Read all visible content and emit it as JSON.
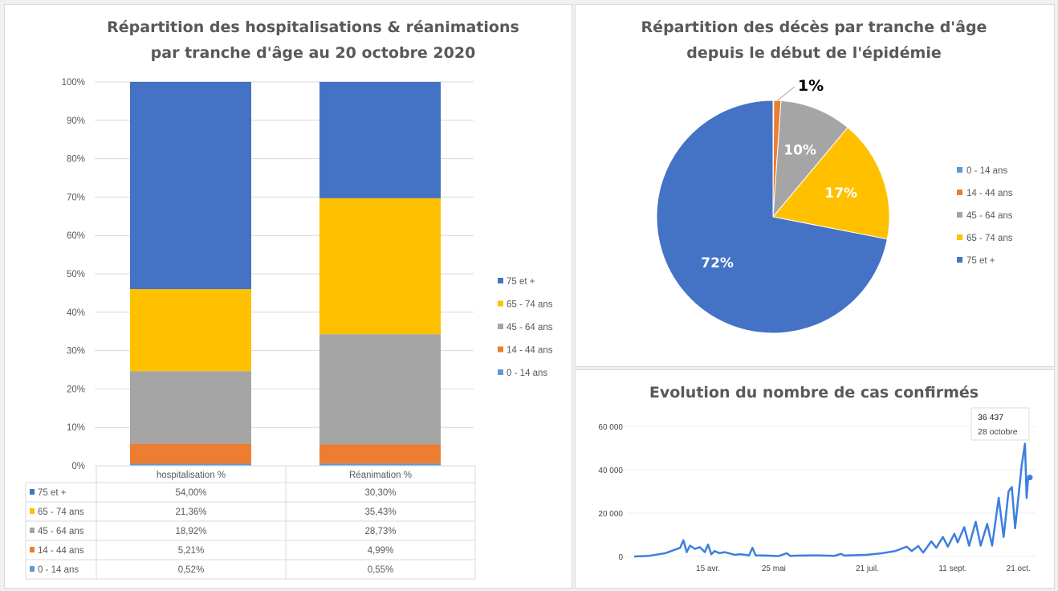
{
  "chart_data": [
    {
      "type": "bar",
      "stacked": true,
      "title": [
        "Répartition des hospitalisations & réanimations",
        "par tranche d'âge au 20 octobre 2020"
      ],
      "categories": [
        "hospitalisation %",
        "Réanimation %"
      ],
      "yticks": [
        "0%",
        "10%",
        "20%",
        "30%",
        "40%",
        "50%",
        "60%",
        "70%",
        "80%",
        "90%",
        "100%"
      ],
      "ylim": [
        0,
        100
      ],
      "series": [
        {
          "name": "0 - 14 ans",
          "values": [
            0.52,
            0.55
          ],
          "labels": [
            "0,52%",
            "0,55%"
          ],
          "color": "#5b9bd5"
        },
        {
          "name": "14 - 44 ans",
          "values": [
            5.21,
            4.99
          ],
          "labels": [
            "5,21%",
            "4,99%"
          ],
          "color": "#ed7d31"
        },
        {
          "name": "45 - 64 ans",
          "values": [
            18.92,
            28.73
          ],
          "labels": [
            "18,92%",
            "28,73%"
          ],
          "color": "#a5a5a5"
        },
        {
          "name": "65 - 74 ans",
          "values": [
            21.36,
            35.43
          ],
          "labels": [
            "21,36%",
            "35,43%"
          ],
          "color": "#ffc000"
        },
        {
          "name": "75 et +",
          "values": [
            54.0,
            30.3
          ],
          "labels": [
            "54,00%",
            "30,30%"
          ],
          "color": "#4472c4"
        }
      ],
      "legend": "right",
      "data_table": true,
      "grid": true
    },
    {
      "type": "pie",
      "title": [
        "Répartition des décès par tranche d'âge",
        "depuis le début de l'épidémie"
      ],
      "slices": [
        {
          "name": "0 - 14 ans",
          "value": 0.1,
          "label": "",
          "color": "#5b9bd5"
        },
        {
          "name": "14 - 44 ans",
          "value": 1,
          "label": "1%",
          "color": "#ed7d31"
        },
        {
          "name": "45 - 64 ans",
          "value": 10,
          "label": "10%",
          "color": "#a5a5a5"
        },
        {
          "name": "65 - 74 ans",
          "value": 17,
          "label": "17%",
          "color": "#ffc000"
        },
        {
          "name": "75 et +",
          "value": 72,
          "label": "72%",
          "color": "#4472c4"
        }
      ],
      "legend": "right"
    },
    {
      "type": "line",
      "title": "Evolution du nombre de cas confirmés",
      "yticks": [
        "0",
        "20 000",
        "40 000",
        "60 000"
      ],
      "ylim": [
        0,
        60000
      ],
      "xticks": [
        {
          "date": "2020-04-15",
          "label": "15 avr."
        },
        {
          "date": "2020-05-25",
          "label": "25 mai"
        },
        {
          "date": "2020-07-21",
          "label": "21 juil."
        },
        {
          "date": "2020-09-11",
          "label": "11 sept."
        },
        {
          "date": "2020-10-21",
          "label": "21 oct."
        }
      ],
      "xlim": [
        "2020-03-01",
        "2020-10-28"
      ],
      "color": "#3c7fe0",
      "tooltip": {
        "value": "36 437",
        "date": "28 octobre"
      },
      "points": [
        [
          "2020-03-01",
          0
        ],
        [
          "2020-03-10",
          300
        ],
        [
          "2020-03-20",
          1500
        ],
        [
          "2020-03-25",
          2900
        ],
        [
          "2020-03-29",
          4000
        ],
        [
          "2020-03-31",
          7500
        ],
        [
          "2020-04-02",
          2000
        ],
        [
          "2020-04-04",
          5000
        ],
        [
          "2020-04-07",
          3500
        ],
        [
          "2020-04-10",
          4300
        ],
        [
          "2020-04-13",
          2000
        ],
        [
          "2020-04-15",
          5500
        ],
        [
          "2020-04-17",
          1000
        ],
        [
          "2020-04-19",
          2500
        ],
        [
          "2020-04-22",
          1500
        ],
        [
          "2020-04-25",
          2000
        ],
        [
          "2020-05-01",
          800
        ],
        [
          "2020-05-05",
          1000
        ],
        [
          "2020-05-10",
          500
        ],
        [
          "2020-05-12",
          4000
        ],
        [
          "2020-05-14",
          500
        ],
        [
          "2020-05-20",
          400
        ],
        [
          "2020-05-28",
          200
        ],
        [
          "2020-06-02",
          1500
        ],
        [
          "2020-06-04",
          300
        ],
        [
          "2020-06-10",
          400
        ],
        [
          "2020-06-20",
          500
        ],
        [
          "2020-07-01",
          300
        ],
        [
          "2020-07-05",
          1200
        ],
        [
          "2020-07-07",
          400
        ],
        [
          "2020-07-21",
          800
        ],
        [
          "2020-07-30",
          1500
        ],
        [
          "2020-08-07",
          2500
        ],
        [
          "2020-08-14",
          4500
        ],
        [
          "2020-08-17",
          2500
        ],
        [
          "2020-08-21",
          4800
        ],
        [
          "2020-08-24",
          1800
        ],
        [
          "2020-08-29",
          7000
        ],
        [
          "2020-09-01",
          4000
        ],
        [
          "2020-09-05",
          9000
        ],
        [
          "2020-09-08",
          4500
        ],
        [
          "2020-09-12",
          10500
        ],
        [
          "2020-09-14",
          6500
        ],
        [
          "2020-09-18",
          13500
        ],
        [
          "2020-09-21",
          5000
        ],
        [
          "2020-09-25",
          16000
        ],
        [
          "2020-09-28",
          5000
        ],
        [
          "2020-10-02",
          15000
        ],
        [
          "2020-10-05",
          5000
        ],
        [
          "2020-10-09",
          27000
        ],
        [
          "2020-10-12",
          9000
        ],
        [
          "2020-10-15",
          30000
        ],
        [
          "2020-10-17",
          32000
        ],
        [
          "2020-10-19",
          13000
        ],
        [
          "2020-10-23",
          42000
        ],
        [
          "2020-10-25",
          52000
        ],
        [
          "2020-10-26",
          27000
        ],
        [
          "2020-10-27",
          37000
        ],
        [
          "2020-10-28",
          36437
        ]
      ]
    }
  ]
}
